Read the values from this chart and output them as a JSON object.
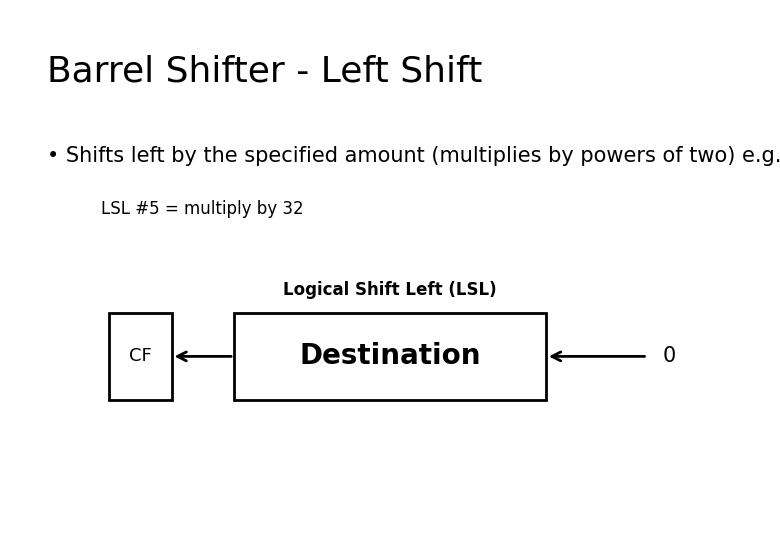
{
  "title": "Barrel Shifter - Left Shift",
  "bullet_text": "• Shifts left by the specified amount (multiplies by powers of two) e.g.",
  "sub_text": "LSL #5 = multiply by 32",
  "diagram_label": "Logical Shift Left (LSL)",
  "cf_label": "CF",
  "dest_label": "Destination",
  "zero_label": "0",
  "bg_color": "#ffffff",
  "text_color": "#000000",
  "title_fontsize": 26,
  "bullet_fontsize": 15,
  "sub_fontsize": 12,
  "diag_label_fontsize": 12,
  "cf_fontsize": 13,
  "dest_fontsize": 20,
  "zero_fontsize": 15
}
